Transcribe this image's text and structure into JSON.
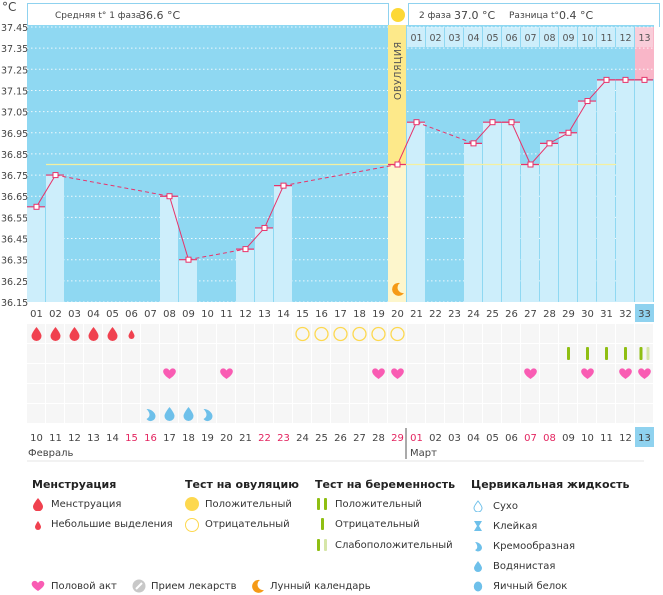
{
  "header": {
    "unit": "°C",
    "phase1_label": "Средняя t° 1 фаза",
    "phase1_value": "36.6 °C",
    "phase2_label": "2 фаза",
    "phase2_value": "37.0 °C",
    "diff_label": "Разница t°",
    "diff_value": "0.4 °C",
    "ovulation_label": "ОВУЛЯЦИЯ"
  },
  "colors": {
    "chart_bg": "#8fd8f2",
    "bar": "#cdeefb",
    "line": "#e8336a",
    "coverline": "#f4f0a0",
    "ovulation": "#fde98a",
    "ovulation_low": "#fdf6cc",
    "today": "#f9b6c8",
    "today_axis": "#8fd2ef"
  },
  "chart_data": {
    "type": "line",
    "title": "",
    "xlabel": "",
    "ylabel": "°C",
    "ylim": [
      36.15,
      37.45
    ],
    "yticks": [
      "37.45",
      "37.35",
      "37.25",
      "37.15",
      "37.05",
      "36.95",
      "36.85",
      "36.75",
      "36.65",
      "36.55",
      "36.45",
      "36.35",
      "36.25",
      "36.15"
    ],
    "cycle_days": [
      "01",
      "02",
      "03",
      "04",
      "05",
      "06",
      "07",
      "08",
      "09",
      "10",
      "11",
      "12",
      "13",
      "14",
      "15",
      "16",
      "17",
      "18",
      "19",
      "20",
      "21",
      "22",
      "23",
      "24",
      "25",
      "26",
      "27",
      "28",
      "29",
      "30",
      "31",
      "32",
      "33"
    ],
    "dpo_labels": [
      "01",
      "02",
      "03",
      "04",
      "05",
      "06",
      "07",
      "08",
      "09",
      "10",
      "11",
      "12",
      "13"
    ],
    "series": [
      {
        "name": "Базальная температура",
        "points": [
          {
            "day": 1,
            "value": 36.6
          },
          {
            "day": 2,
            "value": 36.75
          },
          {
            "day": 8,
            "value": 36.65
          },
          {
            "day": 9,
            "value": 36.35
          },
          {
            "day": 12,
            "value": 36.4
          },
          {
            "day": 13,
            "value": 36.5
          },
          {
            "day": 14,
            "value": 36.7
          },
          {
            "day": 20,
            "value": 36.8
          },
          {
            "day": 21,
            "value": 37.0
          },
          {
            "day": 24,
            "value": 36.9
          },
          {
            "day": 25,
            "value": 37.0
          },
          {
            "day": 26,
            "value": 37.0
          },
          {
            "day": 27,
            "value": 36.8
          },
          {
            "day": 28,
            "value": 36.9
          },
          {
            "day": 29,
            "value": 36.95
          },
          {
            "day": 30,
            "value": 37.1
          },
          {
            "day": 31,
            "value": 37.2
          },
          {
            "day": 32,
            "value": 37.2
          },
          {
            "day": 33,
            "value": 37.2
          }
        ]
      }
    ],
    "coverline": 36.8,
    "coverline_days": [
      2,
      31
    ],
    "ovulation_day": 20,
    "today_day": 33,
    "grid": true,
    "legend": "bottom"
  },
  "calendar": {
    "dates": [
      "10",
      "11",
      "12",
      "13",
      "14",
      "15",
      "16",
      "17",
      "18",
      "19",
      "20",
      "21",
      "22",
      "23",
      "24",
      "25",
      "26",
      "27",
      "28",
      "29",
      "01",
      "02",
      "03",
      "04",
      "05",
      "06",
      "07",
      "08",
      "09",
      "10",
      "11",
      "12",
      "13"
    ],
    "weekend_idx": [
      5,
      6,
      12,
      13,
      19,
      20,
      26,
      27
    ],
    "months": [
      {
        "label": "Февраль",
        "start": 0
      },
      {
        "label": "Март",
        "start": 20
      }
    ]
  },
  "marks": {
    "menstruation": [
      1,
      1,
      1,
      1,
      1,
      2,
      0,
      0,
      0,
      0,
      0,
      0,
      0,
      0,
      0,
      0,
      0,
      0,
      0,
      0,
      0,
      0,
      0,
      0,
      0,
      0,
      0,
      0,
      0,
      0,
      0,
      0,
      0
    ],
    "ovulation_test_negative_days": [
      15,
      16,
      17,
      18,
      19,
      20
    ],
    "pregnancy_test": {
      "negative_days": [
        29,
        30,
        31,
        32
      ],
      "faint_positive_days": [
        33
      ]
    },
    "intercourse_days": [
      8,
      11,
      19,
      20,
      27,
      30,
      32,
      33
    ],
    "cervical_fluid": [
      {
        "day": 7,
        "type": "creamy"
      },
      {
        "day": 8,
        "type": "watery"
      },
      {
        "day": 9,
        "type": "watery"
      },
      {
        "day": 10,
        "type": "creamy"
      }
    ]
  },
  "legend": {
    "menstruation": {
      "title": "Менструация",
      "items": [
        "Менструация",
        "Небольшие выделения"
      ]
    },
    "ovulation_test": {
      "title": "Тест на овуляцию",
      "items": [
        "Положительный",
        "Отрицательный"
      ]
    },
    "pregnancy_test": {
      "title": "Тест на беременность",
      "items": [
        "Положительный",
        "Отрицательный",
        "Слабоположительный"
      ]
    },
    "cervical_fluid": {
      "title": "Цервикальная жидкость",
      "items": [
        "Сухо",
        "Клейкая",
        "Кремообразная",
        "Водянистая",
        "Яичный белок"
      ]
    },
    "other": [
      "Половой акт",
      "Прием лекарств",
      "Лунный календарь"
    ]
  }
}
